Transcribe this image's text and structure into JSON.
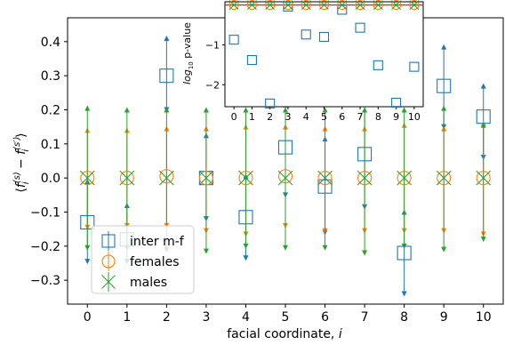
{
  "chart_data": [
    {
      "type": "scatter",
      "xlabel": "facial coordinate, i",
      "ylabel": "⟨f_i^(s) − f_i^(s′)⟩",
      "xlim": [
        -0.5,
        10.5
      ],
      "ylim": [
        -0.37,
        0.47
      ],
      "x_ticks": [
        0,
        1,
        2,
        3,
        4,
        5,
        6,
        7,
        8,
        9,
        10
      ],
      "y_ticks": [
        -0.3,
        -0.2,
        -0.1,
        0.0,
        0.1,
        0.2,
        0.3,
        0.4
      ],
      "y_tick_labels": [
        "−0.3",
        "−0.2",
        "−0.1",
        "0.0",
        "0.1",
        "0.2",
        "0.3",
        "0.4"
      ],
      "legend_position": "lower-left",
      "series": [
        {
          "name": "inter m-f",
          "marker": "square",
          "color": "#1f77b4",
          "x": [
            0,
            1,
            2,
            3,
            4,
            5,
            6,
            7,
            8,
            9,
            10
          ],
          "y": [
            -0.13,
            -0.18,
            0.3,
            0.0,
            -0.115,
            0.09,
            -0.025,
            0.07,
            -0.22,
            0.27,
            0.18
          ],
          "err_low": [
            -0.245,
            -0.245,
            0.2,
            -0.12,
            -0.235,
            -0.05,
            -0.16,
            -0.085,
            -0.34,
            0.15,
            0.06
          ],
          "err_high": [
            -0.01,
            -0.08,
            0.41,
            0.125,
            0.005,
            0.215,
            0.115,
            0.22,
            -0.1,
            0.385,
            0.27
          ]
        },
        {
          "name": "females",
          "marker": "circle",
          "color": "#ff7f0e",
          "x": [
            0,
            1,
            2,
            3,
            4,
            5,
            6,
            7,
            8,
            9,
            10
          ],
          "y": [
            0.0,
            0.0,
            0.005,
            0.0,
            0.0,
            0.005,
            0.0,
            0.0,
            0.0,
            0.0,
            0.0
          ],
          "err_low": [
            -0.145,
            -0.14,
            -0.14,
            -0.155,
            -0.165,
            -0.14,
            -0.155,
            -0.155,
            -0.155,
            -0.155,
            -0.165
          ],
          "err_high": [
            0.14,
            0.14,
            0.145,
            0.145,
            0.15,
            0.15,
            0.145,
            0.145,
            0.155,
            0.145,
            0.16
          ]
        },
        {
          "name": "males",
          "marker": "x",
          "color": "#2ca02c",
          "x": [
            0,
            1,
            2,
            3,
            4,
            5,
            6,
            7,
            8,
            9,
            10
          ],
          "y": [
            0.0,
            0.0,
            0.0,
            0.0,
            0.0,
            0.0,
            0.0,
            0.0,
            0.0,
            0.0,
            0.0
          ],
          "err_low": [
            -0.205,
            -0.205,
            -0.21,
            -0.215,
            -0.2,
            -0.205,
            -0.205,
            -0.22,
            -0.2,
            -0.21,
            -0.18
          ],
          "err_high": [
            0.205,
            0.2,
            0.2,
            0.2,
            0.2,
            0.2,
            0.2,
            0.2,
            0.2,
            0.205,
            0.155
          ]
        }
      ]
    },
    {
      "type": "scatter",
      "ylabel": "log_10 p-value",
      "xlim": [
        -0.5,
        10.5
      ],
      "ylim": [
        -2.55,
        0.08
      ],
      "x_ticks": [
        0,
        1,
        2,
        3,
        4,
        5,
        6,
        7,
        8,
        9,
        10
      ],
      "y_ticks": [
        -1,
        -2
      ],
      "y_tick_labels": [
        "−1",
        "−2"
      ],
      "threshold_line": 0.0,
      "threshold_color": "#d62728",
      "series": [
        {
          "name": "inter m-f",
          "marker": "square",
          "color": "#1f77b4",
          "x": [
            0,
            1,
            2,
            3,
            4,
            5,
            6,
            7,
            8,
            9,
            10
          ],
          "y": [
            -0.87,
            -1.38,
            -2.47,
            -0.04,
            -0.74,
            -0.8,
            -0.12,
            -0.57,
            -1.51,
            -2.45,
            -1.55
          ]
        },
        {
          "name": "females",
          "marker": "circle",
          "color": "#ff7f0e",
          "x": [
            0,
            1,
            2,
            3,
            4,
            5,
            6,
            7,
            8,
            9,
            10
          ],
          "y": [
            0,
            0,
            0,
            0,
            0,
            0,
            0,
            0,
            0,
            0,
            0
          ]
        },
        {
          "name": "males",
          "marker": "x",
          "color": "#2ca02c",
          "x": [
            0,
            1,
            2,
            3,
            4,
            5,
            6,
            7,
            8,
            9,
            10
          ],
          "y": [
            0,
            0,
            0,
            0,
            0,
            0,
            0,
            0,
            0,
            0,
            0
          ]
        }
      ]
    }
  ]
}
